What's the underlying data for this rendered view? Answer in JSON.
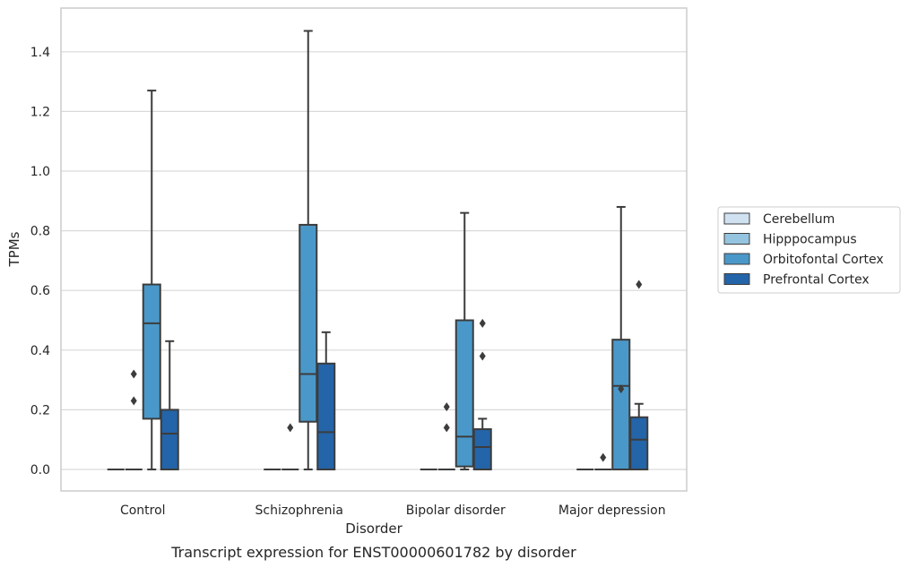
{
  "chart_data": {
    "type": "box",
    "caption": "Transcript expression for ENST00000601782 by disorder",
    "xlabel": "Disorder",
    "ylabel": "TPMs",
    "ylim": [
      -0.07,
      1.55
    ],
    "yticks": [
      "0.0",
      "0.2",
      "0.4",
      "0.6",
      "0.8",
      "1.0",
      "1.2",
      "1.4"
    ],
    "grid": true,
    "legend_placement": "right",
    "categories": [
      "Control",
      "Schizophrenia",
      "Bipolar disorder",
      "Major depression"
    ],
    "series": [
      {
        "name": "Cerebellum",
        "color": "#d0e1f2",
        "boxes": [
          {
            "min": 0,
            "q1": 0,
            "median": 0,
            "q3": 0,
            "max": 0,
            "outliers": []
          },
          {
            "min": 0,
            "q1": 0,
            "median": 0,
            "q3": 0,
            "max": 0,
            "outliers": []
          },
          {
            "min": 0,
            "q1": 0,
            "median": 0,
            "q3": 0,
            "max": 0,
            "outliers": []
          },
          {
            "min": 0,
            "q1": 0,
            "median": 0,
            "q3": 0,
            "max": 0,
            "outliers": []
          }
        ]
      },
      {
        "name": "Hipppocampus",
        "color": "#94c4df",
        "boxes": [
          {
            "min": 0,
            "q1": 0,
            "median": 0,
            "q3": 0,
            "max": 0,
            "outliers": [
              0.32,
              0.23
            ]
          },
          {
            "min": 0,
            "q1": 0,
            "median": 0,
            "q3": 0,
            "max": 0,
            "outliers": [
              0.14
            ]
          },
          {
            "min": 0,
            "q1": 0,
            "median": 0,
            "q3": 0,
            "max": 0,
            "outliers": [
              0.21,
              0.14
            ]
          },
          {
            "min": 0,
            "q1": 0,
            "median": 0,
            "q3": 0,
            "max": 0,
            "outliers": [
              0.04
            ]
          }
        ]
      },
      {
        "name": "Orbitofontal Cortex",
        "color": "#4a98c9",
        "boxes": [
          {
            "min": 0,
            "q1": 0.17,
            "median": 0.49,
            "q3": 0.62,
            "max": 1.27,
            "outliers": []
          },
          {
            "min": 0,
            "q1": 0.16,
            "median": 0.32,
            "q3": 0.82,
            "max": 1.47,
            "outliers": []
          },
          {
            "min": 0,
            "q1": 0.01,
            "median": 0.11,
            "q3": 0.5,
            "max": 0.86,
            "outliers": []
          },
          {
            "min": 0,
            "q1": 0,
            "median": 0.28,
            "q3": 0.435,
            "max": 0.88,
            "outliers": [
              0.27
            ]
          }
        ]
      },
      {
        "name": "Prefrontal Cortex",
        "color": "#2464a8",
        "boxes": [
          {
            "min": 0,
            "q1": 0,
            "median": 0.12,
            "q3": 0.2,
            "max": 0.43,
            "outliers": []
          },
          {
            "min": 0,
            "q1": 0,
            "median": 0.125,
            "q3": 0.355,
            "max": 0.46,
            "outliers": []
          },
          {
            "min": 0,
            "q1": 0,
            "median": 0.075,
            "q3": 0.135,
            "max": 0.17,
            "outliers": [
              0.49,
              0.38
            ]
          },
          {
            "min": 0,
            "q1": 0,
            "median": 0.1,
            "q3": 0.175,
            "max": 0.22,
            "outliers": [
              0.62
            ]
          }
        ]
      }
    ]
  }
}
